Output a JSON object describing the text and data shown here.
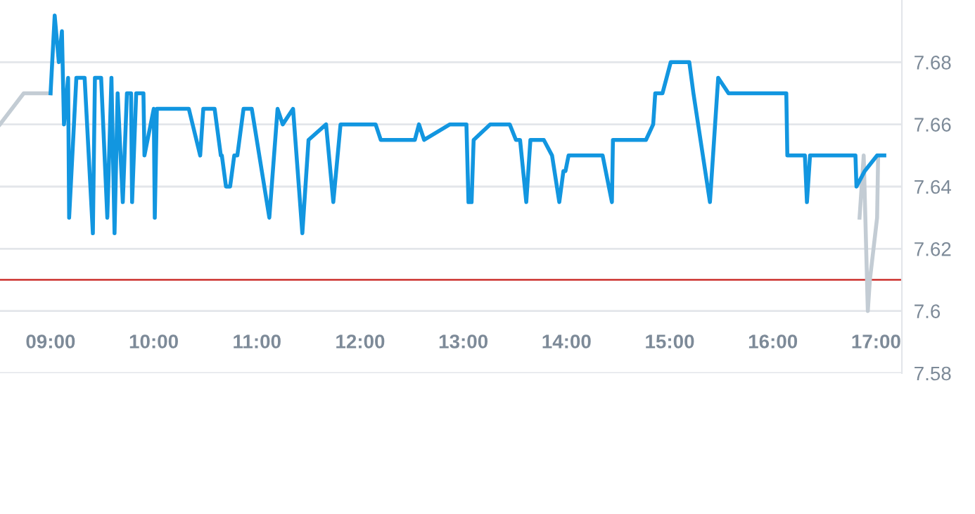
{
  "chart_data": {
    "type": "line",
    "series": [
      {
        "color": "#c3ccd4",
        "x": [
          8.51,
          8.74,
          9.0
        ],
        "values": [
          7.66,
          7.67,
          7.67
        ]
      },
      {
        "color": "#c3ccd4",
        "x": [
          16.84,
          16.88,
          16.92,
          16.94,
          17.01,
          17.02
        ],
        "values": [
          7.63,
          7.65,
          7.6,
          7.61,
          7.63,
          7.65
        ]
      },
      {
        "color": "#1296e0",
        "x": [
          9.0,
          9.04,
          9.08,
          9.11,
          9.13,
          9.17,
          9.18,
          9.25,
          9.33,
          9.41,
          9.43,
          9.49,
          9.55,
          9.59,
          9.62,
          9.65,
          9.7,
          9.74,
          9.78,
          9.79,
          9.83,
          9.9,
          9.91,
          10.0,
          10.01,
          10.03,
          10.34,
          10.45,
          10.48,
          10.59,
          10.65,
          10.66,
          10.7,
          10.74,
          10.78,
          10.81,
          10.87,
          10.95,
          11.12,
          11.2,
          11.25,
          11.35,
          11.44,
          11.5,
          11.67,
          11.74,
          11.81,
          12.15,
          12.2,
          12.53,
          12.57,
          12.62,
          12.87,
          13.03,
          13.05,
          13.08,
          13.1,
          13.26,
          13.45,
          13.51,
          13.55,
          13.61,
          13.65,
          13.78,
          13.86,
          13.93,
          13.97,
          13.99,
          14.02,
          14.35,
          14.44,
          14.45,
          14.77,
          14.84,
          14.86,
          14.93,
          14.97,
          15.01,
          15.19,
          15.23,
          15.39,
          15.47,
          15.57,
          16.13,
          16.14,
          16.31,
          16.33,
          16.36,
          16.8,
          16.81,
          16.89,
          17.01,
          17.08
        ],
        "values": [
          7.67,
          7.695,
          7.68,
          7.69,
          7.66,
          7.675,
          7.63,
          7.675,
          7.675,
          7.625,
          7.675,
          7.675,
          7.63,
          7.675,
          7.625,
          7.67,
          7.635,
          7.67,
          7.67,
          7.635,
          7.67,
          7.67,
          7.65,
          7.665,
          7.63,
          7.665,
          7.665,
          7.65,
          7.665,
          7.665,
          7.65,
          7.65,
          7.64,
          7.64,
          7.65,
          7.65,
          7.665,
          7.665,
          7.63,
          7.665,
          7.66,
          7.665,
          7.625,
          7.655,
          7.66,
          7.635,
          7.66,
          7.66,
          7.655,
          7.655,
          7.66,
          7.655,
          7.66,
          7.66,
          7.635,
          7.635,
          7.655,
          7.66,
          7.66,
          7.655,
          7.655,
          7.635,
          7.655,
          7.655,
          7.65,
          7.635,
          7.645,
          7.645,
          7.65,
          7.65,
          7.635,
          7.655,
          7.655,
          7.66,
          7.67,
          7.67,
          7.675,
          7.68,
          7.68,
          7.67,
          7.635,
          7.675,
          7.67,
          7.67,
          7.65,
          7.65,
          7.635,
          7.65,
          7.65,
          7.64,
          7.645,
          7.65,
          7.65
        ]
      }
    ],
    "xlim": [
      8.51,
      17.25
    ],
    "xticks": [
      {
        "value": 9,
        "label": "09:00"
      },
      {
        "value": 10,
        "label": "10:00"
      },
      {
        "value": 11,
        "label": "11:00"
      },
      {
        "value": 12,
        "label": "12:00"
      },
      {
        "value": 13,
        "label": "13:00"
      },
      {
        "value": 14,
        "label": "14:00"
      },
      {
        "value": 15,
        "label": "15:00"
      },
      {
        "value": 16,
        "label": "16:00"
      },
      {
        "value": 17,
        "label": "17:00"
      }
    ],
    "ylim": [
      7.58,
      7.7
    ],
    "yticks": [
      7.58,
      7.6,
      7.62,
      7.64,
      7.66,
      7.68
    ],
    "ref_lines": [
      {
        "axis": "y",
        "value": 7.61,
        "color": "#d0413e"
      }
    ],
    "grid": "y",
    "marker": "none",
    "line_style": "solid"
  }
}
